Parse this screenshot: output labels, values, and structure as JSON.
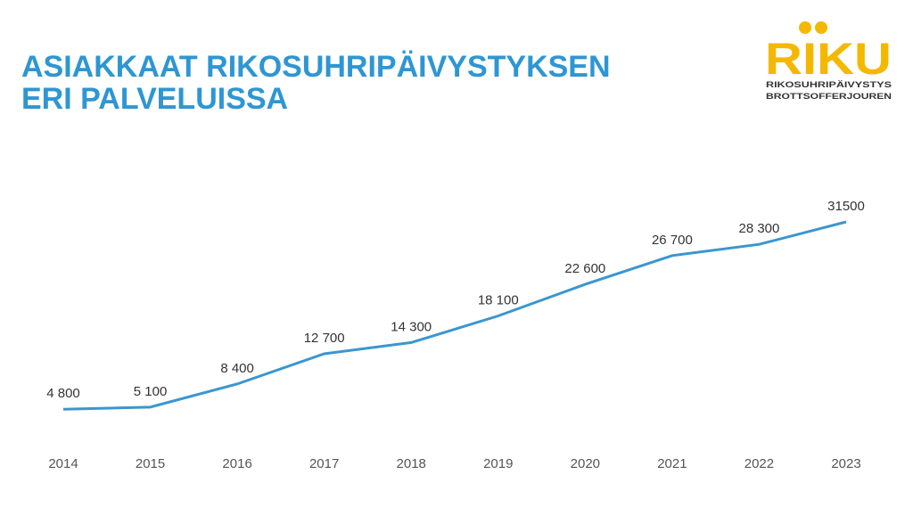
{
  "chart_data": {
    "type": "line",
    "title": [
      "ASIAKKAAT RIKOSUHRIPÄIVYSTYKSEN",
      "ERI PALVELUISSA"
    ],
    "categories": [
      "2014",
      "2015",
      "2016",
      "2017",
      "2018",
      "2019",
      "2020",
      "2021",
      "2022",
      "2023"
    ],
    "values": [
      4800,
      5100,
      8400,
      12700,
      14300,
      18100,
      22600,
      26700,
      28300,
      31500
    ],
    "value_labels": [
      "4 800",
      "5 100",
      "8 400",
      "12 700",
      "14 300",
      "18 100",
      "22 600",
      "26 700",
      "28 300",
      "31500"
    ],
    "color": "#3a96d0"
  },
  "logo": {
    "name": "RIKU",
    "line1": "RIKOSUHRIPÄIVYSTYS",
    "line2": "BROTTSOFFERJOUREN"
  }
}
